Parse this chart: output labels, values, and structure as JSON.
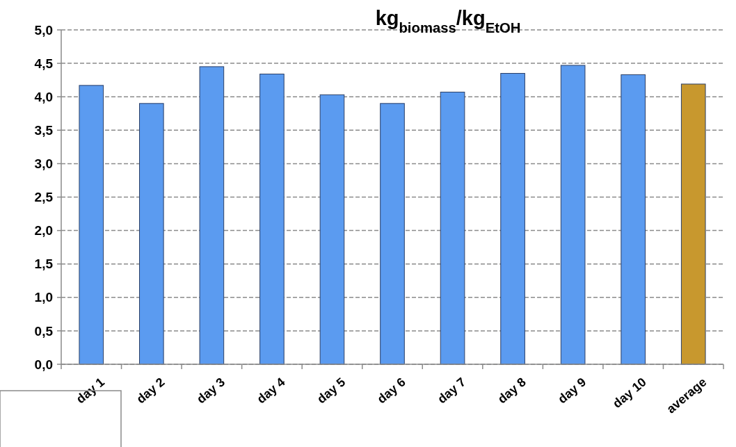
{
  "chart_data": {
    "type": "bar",
    "title": "kg$_{biomass}$/kg$_{EtOH}$",
    "categories": [
      "day 1",
      "day 2",
      "day 3",
      "day 4",
      "day 5",
      "day 6",
      "day 7",
      "day 8",
      "day 9",
      "day 10",
      "average"
    ],
    "values": [
      4.17,
      3.9,
      4.45,
      4.34,
      4.03,
      3.9,
      4.07,
      4.35,
      4.47,
      4.33,
      4.19
    ],
    "colors": [
      "#5b9bf0",
      "#5b9bf0",
      "#5b9bf0",
      "#5b9bf0",
      "#5b9bf0",
      "#5b9bf0",
      "#5b9bf0",
      "#5b9bf0",
      "#5b9bf0",
      "#5b9bf0",
      "#c8982e"
    ],
    "ylim": [
      0,
      5
    ],
    "yticks": [
      {
        "value": 0,
        "label": "0,0"
      },
      {
        "value": 0.5,
        "label": "0,5"
      },
      {
        "value": 1,
        "label": "1,0"
      },
      {
        "value": 1.5,
        "label": "1,5"
      },
      {
        "value": 2,
        "label": "2,0"
      },
      {
        "value": 2.5,
        "label": "2,5"
      },
      {
        "value": 3,
        "label": "3,0"
      },
      {
        "value": 3.5,
        "label": "3,5"
      },
      {
        "value": 4,
        "label": "4,0"
      },
      {
        "value": 4.5,
        "label": "4,5"
      },
      {
        "value": 5,
        "label": "5,0"
      }
    ],
    "grid": "y"
  }
}
